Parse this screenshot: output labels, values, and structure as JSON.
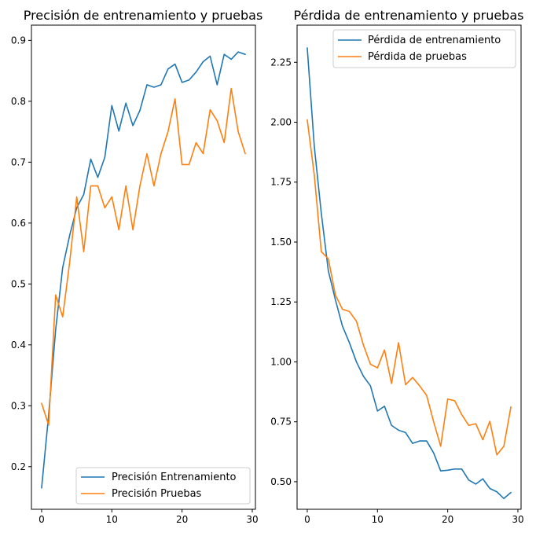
{
  "chart_data": [
    {
      "type": "line",
      "title": "Precisión de entrenamiento y pruebas",
      "xlabel": "",
      "ylabel": "",
      "xlim": [
        -1.45,
        30.45
      ],
      "ylim": [
        0.13,
        0.925
      ],
      "xticks": [
        0,
        10,
        20,
        30
      ],
      "yticks": [
        0.2,
        0.3,
        0.4,
        0.5,
        0.6,
        0.7,
        0.8,
        0.9
      ],
      "xtick_labels": [
        "0",
        "10",
        "20",
        "30"
      ],
      "ytick_labels": [
        "0.2",
        "0.3",
        "0.4",
        "0.5",
        "0.6",
        "0.7",
        "0.8",
        "0.9"
      ],
      "grid": false,
      "legend": "lower-right",
      "x": [
        0,
        1,
        2,
        3,
        4,
        5,
        6,
        7,
        8,
        9,
        10,
        11,
        12,
        13,
        14,
        15,
        16,
        17,
        18,
        19,
        20,
        21,
        22,
        23,
        24,
        25,
        26,
        27,
        28,
        29
      ],
      "series": [
        {
          "name": "Precisión Entrenamiento",
          "color": "#1f77b4",
          "values": [
            0.165,
            0.285,
            0.425,
            0.527,
            0.58,
            0.625,
            0.647,
            0.705,
            0.675,
            0.708,
            0.793,
            0.751,
            0.797,
            0.76,
            0.785,
            0.827,
            0.823,
            0.827,
            0.853,
            0.861,
            0.831,
            0.835,
            0.848,
            0.865,
            0.874,
            0.827,
            0.877,
            0.869,
            0.881,
            0.877
          ]
        },
        {
          "name": "Precisión Pruebas",
          "color": "#ff7f0e",
          "values": [
            0.304,
            0.268,
            0.482,
            0.446,
            0.536,
            0.643,
            0.553,
            0.661,
            0.661,
            0.625,
            0.643,
            0.589,
            0.661,
            0.589,
            0.661,
            0.714,
            0.661,
            0.714,
            0.75,
            0.804,
            0.696,
            0.696,
            0.732,
            0.714,
            0.786,
            0.768,
            0.732,
            0.821,
            0.75,
            0.714
          ]
        }
      ]
    },
    {
      "type": "line",
      "title": "Pérdida de entrenamiento y pruebas",
      "xlabel": "",
      "ylabel": "",
      "xlim": [
        -1.45,
        30.45
      ],
      "ylim": [
        0.385,
        2.405
      ],
      "xticks": [
        0,
        10,
        20,
        30
      ],
      "yticks": [
        0.5,
        0.75,
        1.0,
        1.25,
        1.5,
        1.75,
        2.0,
        2.25
      ],
      "xtick_labels": [
        "0",
        "10",
        "20",
        "30"
      ],
      "ytick_labels": [
        "0.50",
        "0.75",
        "1.00",
        "1.25",
        "1.50",
        "1.75",
        "2.00",
        "2.25"
      ],
      "grid": false,
      "legend": "upper-right",
      "x": [
        0,
        1,
        2,
        3,
        4,
        5,
        6,
        7,
        8,
        9,
        10,
        11,
        12,
        13,
        14,
        15,
        16,
        17,
        18,
        19,
        20,
        21,
        22,
        23,
        24,
        25,
        26,
        27,
        28,
        29
      ],
      "series": [
        {
          "name": "Pérdida de entrenamiento",
          "color": "#1f77b4",
          "values": [
            2.31,
            1.9,
            1.62,
            1.38,
            1.26,
            1.15,
            1.08,
            1.0,
            0.94,
            0.9,
            0.795,
            0.815,
            0.735,
            0.715,
            0.705,
            0.66,
            0.67,
            0.67,
            0.62,
            0.545,
            0.548,
            0.553,
            0.553,
            0.507,
            0.49,
            0.512,
            0.472,
            0.458,
            0.43,
            0.455
          ]
        },
        {
          "name": "Pérdida de pruebas",
          "color": "#ff7f0e",
          "values": [
            2.01,
            1.78,
            1.46,
            1.43,
            1.28,
            1.22,
            1.21,
            1.17,
            1.07,
            0.99,
            0.975,
            1.05,
            0.91,
            1.08,
            0.905,
            0.935,
            0.9,
            0.86,
            0.75,
            0.648,
            0.845,
            0.838,
            0.78,
            0.735,
            0.742,
            0.675,
            0.752,
            0.612,
            0.648,
            0.812
          ]
        }
      ]
    }
  ]
}
